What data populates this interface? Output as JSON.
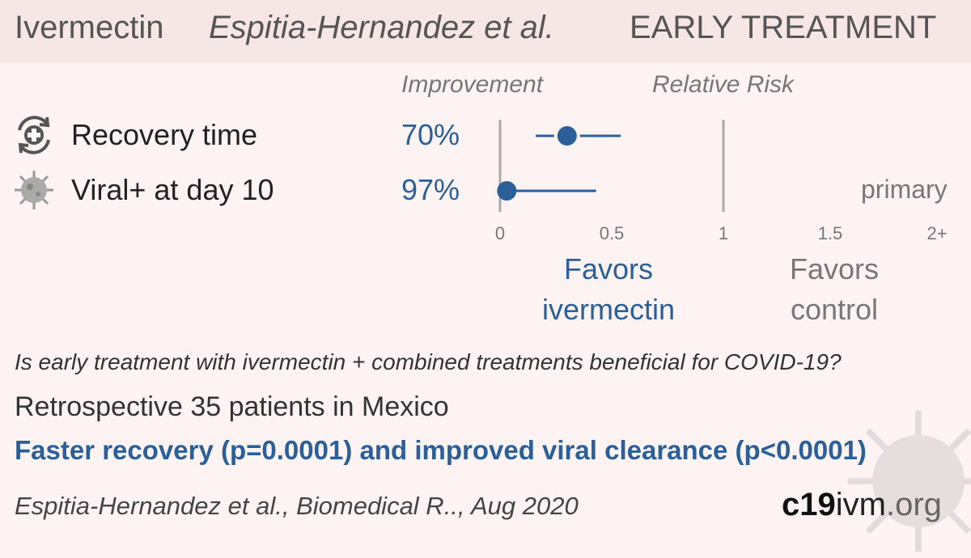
{
  "header": {
    "drug": "Ivermectin",
    "study": "Espitia-Hernandez et al.",
    "treatment": "EARLY TREATMENT"
  },
  "columns": {
    "improvement": "Improvement",
    "relative_risk": "Relative Risk"
  },
  "rows": [
    {
      "label": "Recovery time",
      "improvement": "70%",
      "icon": "recovery-icon"
    },
    {
      "label": "Viral+ at day 10",
      "improvement": "97%",
      "icon": "virus-icon"
    }
  ],
  "primary_label": "primary",
  "favors": {
    "left": [
      "Favors",
      "ivermectin"
    ],
    "right": [
      "Favors",
      "control"
    ]
  },
  "question": "Is early treatment with ivermectin + combined treatments beneficial for COVID-19?",
  "design": "Retrospective 35 patients in Mexico",
  "result": "Faster recovery (p=0.0001) and improved viral clearance (p<0.0001)",
  "citation": "Espitia-Hernandez et al., Biomedical R.., Aug 2020",
  "logo": {
    "part1": "c19",
    "part2": "ivm",
    "part3": ".org"
  },
  "colors": {
    "accent": "#2a5f9a",
    "grey": "#777777",
    "background": "#fdf3f3",
    "header": "#f6e6e6"
  },
  "chart_data": {
    "type": "forest",
    "xlabel": "Relative Risk",
    "ticks": [
      {
        "value": 0,
        "label": "0"
      },
      {
        "value": 0.5,
        "label": "0.5"
      },
      {
        "value": 1,
        "label": "1"
      },
      {
        "value": 1.5,
        "label": "1.5"
      },
      {
        "value": 2,
        "label": "2+"
      }
    ],
    "xlim": [
      0,
      2
    ],
    "reference_lines": [
      0,
      1
    ],
    "series": [
      {
        "label": "Recovery time",
        "rr": 0.3,
        "ci_low": 0.16,
        "ci_high": 0.54
      },
      {
        "label": "Viral+ at day 10",
        "rr": 0.03,
        "ci_low": 0.0,
        "ci_high": 0.43
      }
    ]
  }
}
